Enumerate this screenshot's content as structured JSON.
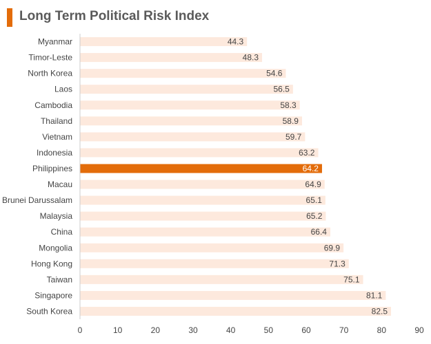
{
  "chart_data": {
    "type": "bar",
    "orientation": "horizontal",
    "title": "Long Term Political Risk Index",
    "categories": [
      "Myanmar",
      "Timor-Leste",
      "North Korea",
      "Laos",
      "Cambodia",
      "Thailand",
      "Vietnam",
      "Indonesia",
      "Philippines",
      "Macau",
      "Brunei Darussalam",
      "Malaysia",
      "China",
      "Mongolia",
      "Hong Kong",
      "Taiwan",
      "Singapore",
      "South Korea"
    ],
    "values": [
      44.3,
      48.3,
      54.6,
      56.5,
      58.3,
      58.9,
      59.7,
      63.2,
      64.2,
      64.9,
      65.1,
      65.2,
      66.4,
      69.9,
      71.3,
      75.1,
      81.1,
      82.5
    ],
    "value_labels": [
      "44.3",
      "48.3",
      "54.6",
      "56.5",
      "58.3",
      "58.9",
      "59.7",
      "63.2",
      "64.2",
      "64.9",
      "65.1",
      "65.2",
      "66.4",
      "69.9",
      "71.3",
      "75.1",
      "81.1",
      "82.5"
    ],
    "highlight": "Philippines",
    "xlim": [
      0,
      90
    ],
    "xticks": [
      0,
      10,
      20,
      30,
      40,
      50,
      60,
      70,
      80,
      90
    ],
    "xtick_labels": [
      "0",
      "10",
      "20",
      "30",
      "40",
      "50",
      "60",
      "70",
      "80",
      "90"
    ],
    "grid": false,
    "legend": "none",
    "colors": {
      "bar": "#fde9dd",
      "highlight": "#e36c0a",
      "highlight_text": "#ffffff",
      "title_accent": "#e36c0a",
      "axis": "#cccccc"
    }
  }
}
